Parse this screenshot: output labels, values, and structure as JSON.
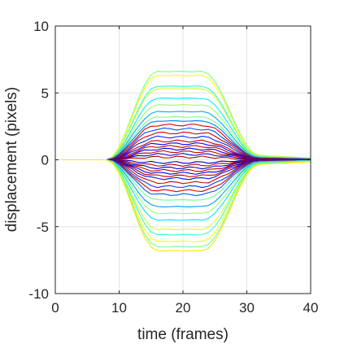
{
  "chart_data": {
    "type": "line",
    "title": "",
    "xlabel": "time (frames)",
    "ylabel": "displacement (pixels)",
    "xlim": [
      0,
      40
    ],
    "ylim": [
      -10,
      10
    ],
    "xticks": [
      0,
      10,
      20,
      30,
      40
    ],
    "yticks": [
      -10,
      -5,
      0,
      5,
      10
    ],
    "xtick_labels": [
      "0",
      "10",
      "20",
      "30",
      "40"
    ],
    "ytick_labels": [
      "-10",
      "-5",
      "0",
      "5",
      "10"
    ],
    "grid": true,
    "legend": "none",
    "colormap": "jet",
    "x": [
      1,
      2,
      3,
      4,
      5,
      6,
      7,
      8,
      9,
      10,
      11,
      12,
      13,
      14,
      15,
      16,
      17,
      18,
      19,
      20,
      21,
      22,
      23,
      24,
      25,
      26,
      27,
      28,
      29,
      30,
      31,
      32,
      33,
      34,
      35,
      36,
      37,
      38,
      39,
      40
    ],
    "peak_displacements": [
      6.6,
      6.3,
      5.5,
      5.3,
      4.6,
      4.1,
      3.6,
      3.2,
      2.9,
      2.6,
      2.3,
      2.0,
      1.7,
      1.4,
      1.2,
      1.0,
      0.8,
      0.6,
      0.4,
      0.2,
      -0.2,
      -0.4,
      -0.6,
      -0.8,
      -1.0,
      -1.2,
      -1.4,
      -1.7,
      -2.0,
      -2.3,
      -2.6,
      -3.0,
      -3.5,
      -4.0,
      -4.5,
      -5.2,
      -5.6,
      -6.1,
      -6.5,
      -6.8
    ],
    "envelope": {
      "rise_start": 8,
      "rise_end": 16,
      "plateau_end": 23,
      "decay_end": 32,
      "residual_at_40": 0.05
    }
  }
}
